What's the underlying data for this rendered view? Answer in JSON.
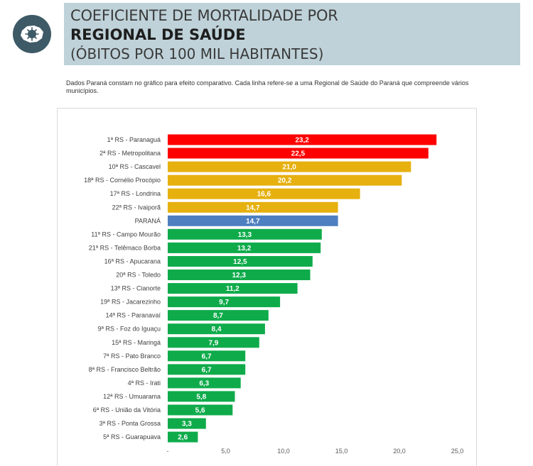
{
  "header": {
    "title_line1": "COEFICIENTE DE MORTALIDADE POR",
    "title_line2": "REGIONAL DE SAÚDE",
    "title_line3": "(ÓBITOS POR 100 MIL HABITANTES)",
    "logo_icon": "virus-on-map-icon"
  },
  "note": "Dados Paraná constam no gráfico para efeito comparativo. Cada linha refere-se a uma Regional de Saúde do Paraná que compreende vários municípios.",
  "colors": {
    "header_bg": "#bfd2d9",
    "logo_bg": "#3d5a66",
    "red": "#ff0000",
    "orange": "#e6b00f",
    "blue": "#4e7fc0",
    "green": "#0fab4b"
  },
  "chart_data": {
    "type": "bar",
    "orientation": "horizontal",
    "categories": [
      "1ª RS - Paranaguá",
      "2ª RS - Metropolitana",
      "10ª RS - Cascavel",
      "18ª RS - Cornélio Procópio",
      "17ª RS - Londrina",
      "22ª RS - Ivaiporã",
      "PARANÁ",
      "11ª RS - Campo Mourão",
      "21ª RS - Telêmaco Borba",
      "16ª RS - Apucarana",
      "20ª RS - Toledo",
      "13ª RS - Cianorte",
      "19ª RS - Jacarezinho",
      "14ª RS - Paranavaí",
      "9ª RS - Foz do Iguaçu",
      "15ª RS - Maringá",
      "7ª RS - Pato Branco",
      "8ª RS - Francisco Beltrão",
      "4ª RS - Irati",
      "12ª RS - Umuarama",
      "6ª RS - União da Vitória",
      "3ª RS - Ponta Grossa",
      "5ª RS - Guarapuava"
    ],
    "values": [
      23.2,
      22.5,
      21.0,
      20.2,
      16.6,
      14.7,
      14.7,
      13.3,
      13.2,
      12.5,
      12.3,
      11.2,
      9.7,
      8.7,
      8.4,
      7.9,
      6.7,
      6.7,
      6.3,
      5.8,
      5.6,
      3.3,
      2.6
    ],
    "value_labels": [
      "23,2",
      "22,5",
      "21,0",
      "20,2",
      "16,6",
      "14,7",
      "14,7",
      "13,3",
      "13,2",
      "12,5",
      "12,3",
      "11,2",
      "9,7",
      "8,7",
      "8,4",
      "7,9",
      "6,7",
      "6,7",
      "6,3",
      "5,8",
      "5,6",
      "3,3",
      "2,6"
    ],
    "bar_colors": [
      "red",
      "red",
      "orange",
      "orange",
      "orange",
      "orange",
      "blue",
      "green",
      "green",
      "green",
      "green",
      "green",
      "green",
      "green",
      "green",
      "green",
      "green",
      "green",
      "green",
      "green",
      "green",
      "green",
      "green"
    ],
    "xticks": [
      0,
      5,
      10,
      15,
      20,
      25
    ],
    "xtick_labels": [
      "-",
      "5,0",
      "10,0",
      "15,0",
      "20,0",
      "25,0"
    ],
    "xlim": [
      0,
      25
    ],
    "title": "",
    "xlabel": "",
    "ylabel": "",
    "grid": false,
    "legend": "none"
  }
}
